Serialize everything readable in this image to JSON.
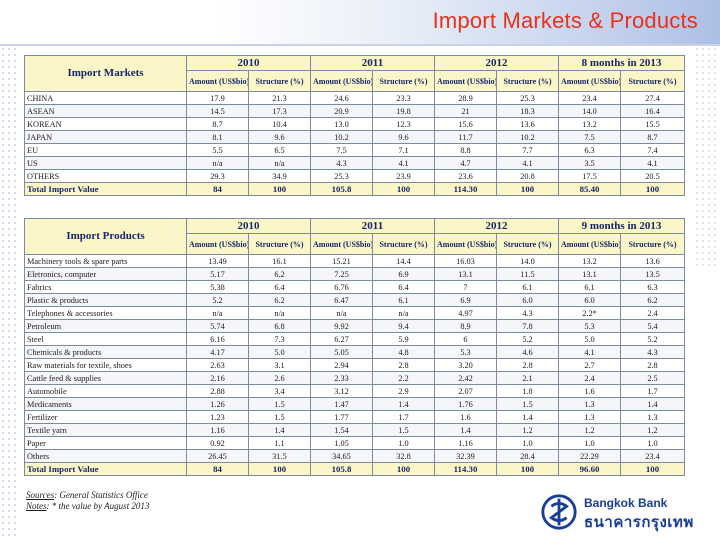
{
  "title": "Import Markets & Products",
  "markets": {
    "corner": "Import Markets",
    "years": [
      "2010",
      "2011",
      "2012",
      "8 months in 2013"
    ],
    "subheaders": [
      "Amount (US$bio)",
      "Structure (%)",
      "Amount (US$bio)",
      "Structure (%)",
      "Amount (US$bio)",
      "Structure (%)",
      "Amount (US$bio)",
      "Structure (%)"
    ],
    "rows": [
      {
        "label": "CHINA",
        "values": [
          "17.9",
          "21.3",
          "24.6",
          "23.3",
          "28.9",
          "25.3",
          "23.4",
          "27.4"
        ]
      },
      {
        "label": "ASEAN",
        "values": [
          "14.5",
          "17.3",
          "20.9",
          "19.8",
          "21",
          "18.3",
          "14.0",
          "16.4"
        ]
      },
      {
        "label": "KOREAN",
        "values": [
          "8.7",
          "10.4",
          "13.0",
          "12.3",
          "15.6",
          "13.6",
          "13.2",
          "15.5"
        ]
      },
      {
        "label": "JAPAN",
        "values": [
          "8.1",
          "9.6",
          "10.2",
          "9.6",
          "11.7",
          "10.2",
          "7.5",
          "8.7"
        ]
      },
      {
        "label": "EU",
        "values": [
          "5.5",
          "6.5",
          "7.5",
          "7.1",
          "8.8",
          "7.7",
          "6.3",
          "7.4"
        ]
      },
      {
        "label": "US",
        "values": [
          "n/a",
          "n/a",
          "4.3",
          "4.1",
          "4.7",
          "4.1",
          "3.5",
          "4.1"
        ]
      },
      {
        "label": "OTHERS",
        "values": [
          "29.3",
          "34.9",
          "25.3",
          "23.9",
          "23.6",
          "20.8",
          "17.5",
          "20.5"
        ]
      }
    ],
    "total": {
      "label": "Total Import Value",
      "values": [
        "84",
        "100",
        "105.8",
        "100",
        "114.30",
        "100",
        "85.40",
        "100"
      ]
    }
  },
  "products": {
    "corner": "Import Products",
    "years": [
      "2010",
      "2011",
      "2012",
      "9 months in 2013"
    ],
    "subheaders": [
      "Amount (US$bio)",
      "Structure (%)",
      "Amount (US$bio)",
      "Structure (%)",
      "Amount (US$bio)",
      "Structure (%)",
      "Amount (US$bio)",
      "Structure (%)"
    ],
    "rows": [
      {
        "label": "Machinery tools & spare parts",
        "values": [
          "13.49",
          "16.1",
          "15.21",
          "14.4",
          "16.03",
          "14.0",
          "13.2",
          "13.6"
        ]
      },
      {
        "label": "Eletronics, computer",
        "values": [
          "5.17",
          "6.2",
          "7.25",
          "6.9",
          "13.1",
          "11.5",
          "13.1",
          "13.5"
        ]
      },
      {
        "label": "Fabrics",
        "values": [
          "5.38",
          "6.4",
          "6.76",
          "6.4",
          "7",
          "6.1",
          "6.1",
          "6.3"
        ]
      },
      {
        "label": "Plastic & products",
        "values": [
          "5.2",
          "6.2",
          "6.47",
          "6.1",
          "6.9",
          "6.0",
          "6.0",
          "6.2"
        ]
      },
      {
        "label": "Telephones & accessories",
        "values": [
          "n/a",
          "n/a",
          "n/a",
          "n/a",
          "4.97",
          "4.3",
          "2.2*",
          "2.4"
        ]
      },
      {
        "label": "Petroleum",
        "values": [
          "5.74",
          "6.8",
          "9.92",
          "9.4",
          "8.9",
          "7.8",
          "5.3",
          "5.4"
        ]
      },
      {
        "label": "Steel",
        "values": [
          "6.16",
          "7.3",
          "6.27",
          "5.9",
          "6",
          "5.2",
          "5.0",
          "5.2"
        ]
      },
      {
        "label": "Chemicals & products",
        "values": [
          "4.17",
          "5.0",
          "5.05",
          "4.8",
          "5.3",
          "4.6",
          "4.1",
          "4.3"
        ]
      },
      {
        "label": "Raw materials for textile, shoes",
        "values": [
          "2.63",
          "3.1",
          "2.94",
          "2.8",
          "3.20",
          "2.8",
          "2.7",
          "2.8"
        ]
      },
      {
        "label": "Cattle feed & supplies",
        "values": [
          "2.16",
          "2.6",
          "2.33",
          "2.2",
          "2.42",
          "2.1",
          "2.4",
          "2.5"
        ]
      },
      {
        "label": "Automobile",
        "values": [
          "2.88",
          "3.4",
          "3.12",
          "2.9",
          "2.07",
          "1.8",
          "1.6",
          "1.7"
        ]
      },
      {
        "label": "Medicaments",
        "values": [
          "1.26",
          "1.5",
          "1.47",
          "1.4",
          "1.76",
          "1.5",
          "1.3",
          "1.4"
        ]
      },
      {
        "label": "Fertilizer",
        "values": [
          "1.23",
          "1.5",
          "1.77",
          "1.7",
          "1.6",
          "1.4",
          "1.3",
          "1.3"
        ]
      },
      {
        "label": "Textile yarn",
        "values": [
          "1.16",
          "1.4",
          "1.54",
          "1.5",
          "1.4",
          "1.2",
          "1.2",
          "1.2"
        ]
      },
      {
        "label": "Paper",
        "values": [
          "0.92",
          "1.1",
          "1.05",
          "1.0",
          "1.16",
          "1.0",
          "1.0",
          "1.0"
        ]
      },
      {
        "label": "Others",
        "values": [
          "26.45",
          "31.5",
          "34.65",
          "32.8",
          "32.39",
          "28.4",
          "22.29",
          "23.4"
        ]
      }
    ],
    "total": {
      "label": "Total Import Value",
      "values": [
        "84",
        "100",
        "105.8",
        "100",
        "114.30",
        "100",
        "96.60",
        "100"
      ]
    }
  },
  "sources": {
    "label": "Sources",
    "text": ": General Statistics Office",
    "notes_label": "Notes",
    "notes_text": ": * the value by August 2013"
  },
  "logo": {
    "english": "Bangkok Bank",
    "thai": "ธนาคารกรุงเทพ"
  }
}
